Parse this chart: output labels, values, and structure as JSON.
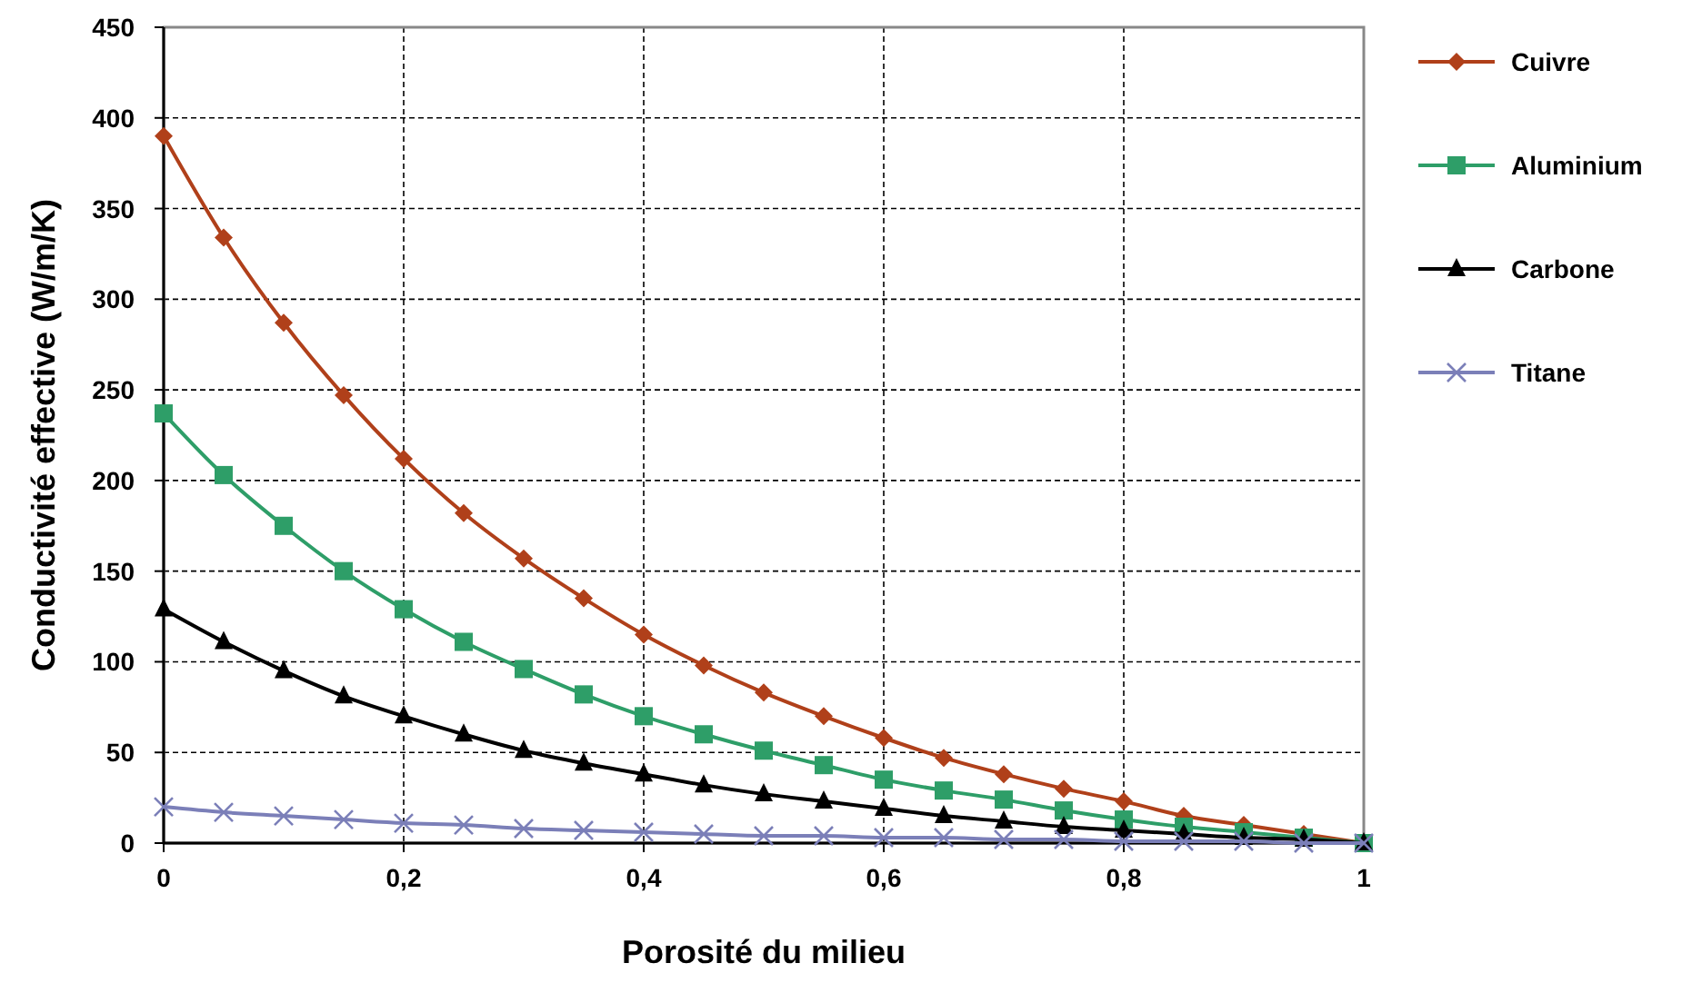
{
  "chart_data": {
    "type": "line",
    "xlabel": "Porosité du milieu",
    "ylabel": "Conductivité effective (W/m/K)",
    "x": [
      0,
      0.05,
      0.1,
      0.15,
      0.2,
      0.25,
      0.3,
      0.35,
      0.4,
      0.45,
      0.5,
      0.55,
      0.6,
      0.65,
      0.7,
      0.75,
      0.8,
      0.85,
      0.9,
      0.95,
      1
    ],
    "series": [
      {
        "name": "Cuivre",
        "color": "#b0401a",
        "marker": "diamond",
        "values": [
          390,
          334,
          287,
          247,
          212,
          182,
          157,
          135,
          115,
          98,
          83,
          70,
          58,
          47,
          38,
          30,
          23,
          15,
          10,
          5,
          0
        ]
      },
      {
        "name": "Aluminium",
        "color": "#2e9e68",
        "marker": "square",
        "values": [
          237,
          203,
          175,
          150,
          129,
          111,
          96,
          82,
          70,
          60,
          51,
          43,
          35,
          29,
          24,
          18,
          13,
          9,
          6,
          3,
          0
        ]
      },
      {
        "name": "Carbone",
        "color": "#000000",
        "marker": "triangle",
        "values": [
          129,
          111,
          95,
          81,
          70,
          60,
          51,
          44,
          38,
          32,
          27,
          23,
          19,
          15,
          12,
          9,
          7,
          5,
          3,
          2,
          0
        ]
      },
      {
        "name": "Titane",
        "color": "#7b7fb8",
        "marker": "cross",
        "values": [
          20,
          17,
          15,
          13,
          11,
          10,
          8,
          7,
          6,
          5,
          4,
          4,
          3,
          3,
          2,
          2,
          1,
          1,
          1,
          0,
          0
        ]
      }
    ],
    "xlim": [
      0,
      1
    ],
    "xticks": [
      0,
      {
        "value": 0.2,
        "label": "0,2"
      },
      {
        "value": 0.4,
        "label": "0,4"
      },
      {
        "value": 0.6,
        "label": "0,6"
      },
      {
        "value": 0.8,
        "label": "0,8"
      },
      1
    ],
    "ylim": [
      0,
      450
    ],
    "yticks": [
      0,
      50,
      100,
      150,
      200,
      250,
      300,
      350,
      400,
      450
    ],
    "grid": true,
    "legend": "right",
    "line_style": "solid"
  }
}
